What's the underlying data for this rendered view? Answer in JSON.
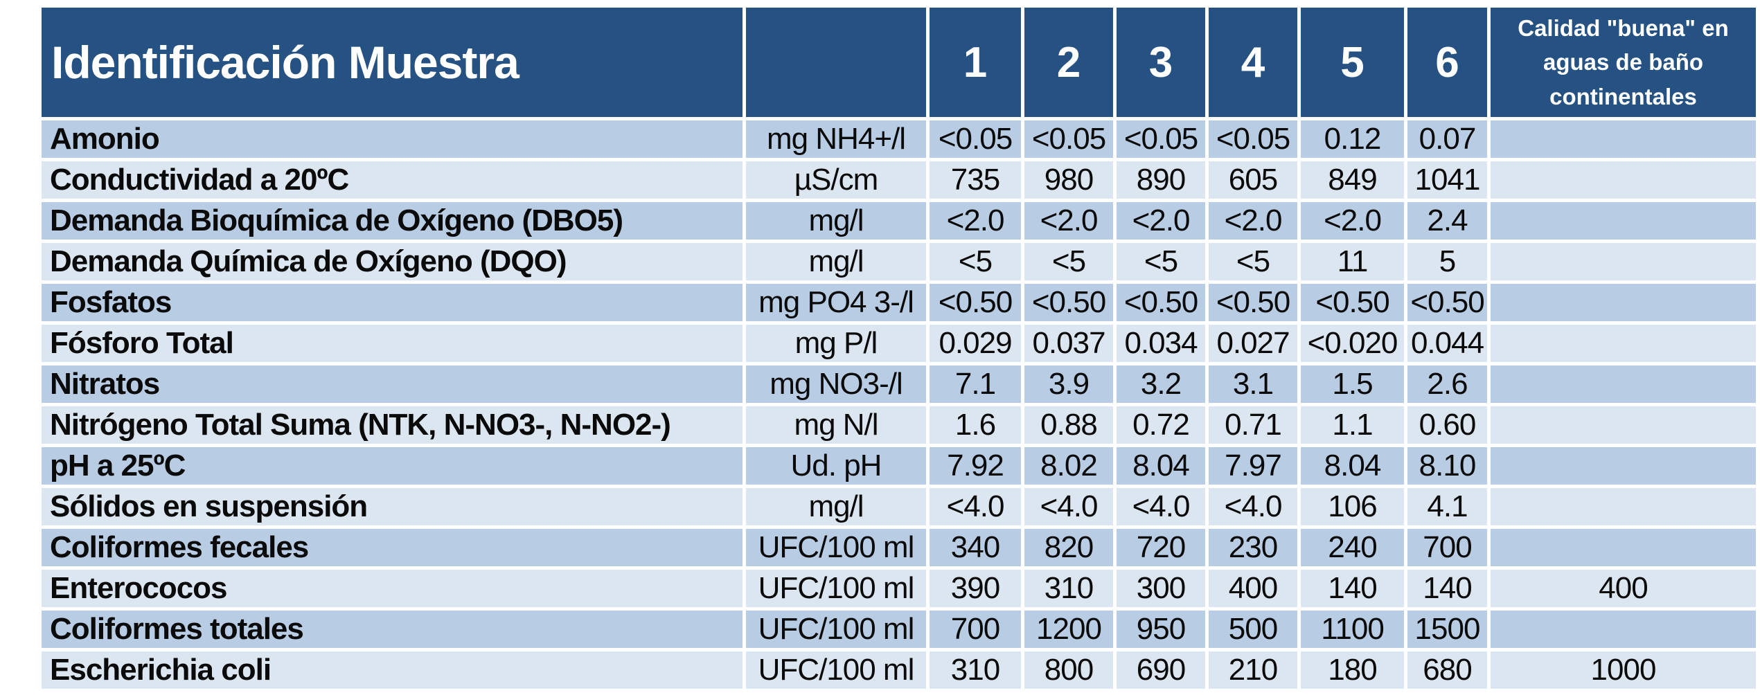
{
  "table": {
    "title": "Identificación Muestra",
    "unit_column_header": "",
    "sample_headers": [
      "1",
      "2",
      "3",
      "4",
      "5",
      "6"
    ],
    "quality_header": "Calidad \"buena\" en aguas de baño continentales",
    "colors": {
      "header_bg": "#255282",
      "header_text": "#FFFFFF",
      "band_dark": "#B8CCE4",
      "band_light": "#DCE6F1",
      "gridline": "#FFFFFF",
      "body_text": "#0A0A0A"
    },
    "rows": [
      {
        "name": "Amonio",
        "unit": "mg NH4+/l",
        "values": [
          "<0.05",
          "<0.05",
          "<0.05",
          "<0.05",
          "0.12",
          "0.07"
        ],
        "quality": ""
      },
      {
        "name": "Conductividad a 20ºC",
        "unit": "µS/cm",
        "values": [
          "735",
          "980",
          "890",
          "605",
          "849",
          "1041"
        ],
        "quality": ""
      },
      {
        "name": "Demanda Bioquímica de Oxígeno (DBO5)",
        "unit": "mg/l",
        "values": [
          "<2.0",
          "<2.0",
          "<2.0",
          "<2.0",
          "<2.0",
          "2.4"
        ],
        "quality": ""
      },
      {
        "name": "Demanda Química de Oxígeno (DQO)",
        "unit": "mg/l",
        "values": [
          "<5",
          "<5",
          "<5",
          "<5",
          "11",
          "5"
        ],
        "quality": ""
      },
      {
        "name": "Fosfatos",
        "unit": "mg PO4 3-/l",
        "values": [
          "<0.50",
          "<0.50",
          "<0.50",
          "<0.50",
          "<0.50",
          "<0.50"
        ],
        "quality": ""
      },
      {
        "name": "Fósforo Total",
        "unit": "mg P/l",
        "values": [
          "0.029",
          "0.037",
          "0.034",
          "0.027",
          "<0.020",
          "0.044"
        ],
        "quality": ""
      },
      {
        "name": "Nitratos",
        "unit": "mg NO3-/l",
        "values": [
          "7.1",
          "3.9",
          "3.2",
          "3.1",
          "1.5",
          "2.6"
        ],
        "quality": ""
      },
      {
        "name": "Nitrógeno Total Suma (NTK, N-NO3-, N-NO2-)",
        "unit": "mg N/l",
        "values": [
          "1.6",
          "0.88",
          "0.72",
          "0.71",
          "1.1",
          "0.60"
        ],
        "quality": ""
      },
      {
        "name": "pH a 25ºC",
        "unit": "Ud. pH",
        "values": [
          "7.92",
          "8.02",
          "8.04",
          "7.97",
          "8.04",
          "8.10"
        ],
        "quality": ""
      },
      {
        "name": "Sólidos en suspensión",
        "unit": "mg/l",
        "values": [
          "<4.0",
          "<4.0",
          "<4.0",
          "<4.0",
          "106",
          "4.1"
        ],
        "quality": ""
      },
      {
        "name": "Coliformes fecales",
        "unit": "UFC/100 ml",
        "values": [
          "340",
          "820",
          "720",
          "230",
          "240",
          "700"
        ],
        "quality": ""
      },
      {
        "name": "Enterococos",
        "unit": "UFC/100 ml",
        "values": [
          "390",
          "310",
          "300",
          "400",
          "140",
          "140"
        ],
        "quality": "400"
      },
      {
        "name": "Coliformes totales",
        "unit": "UFC/100 ml",
        "values": [
          "700",
          "1200",
          "950",
          "500",
          "1100",
          "1500"
        ],
        "quality": ""
      },
      {
        "name": "Escherichia coli",
        "unit": "UFC/100 ml",
        "values": [
          "310",
          "800",
          "690",
          "210",
          "180",
          "680"
        ],
        "quality": "1000"
      }
    ]
  }
}
